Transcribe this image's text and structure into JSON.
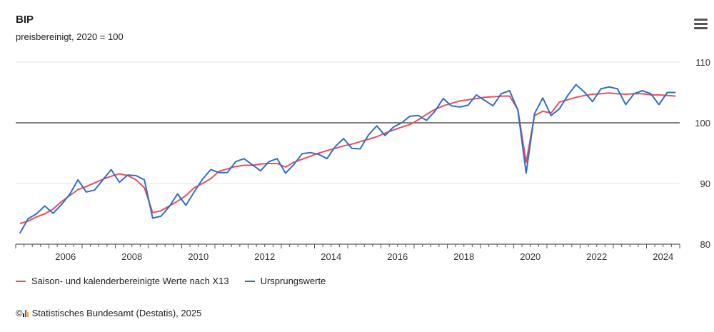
{
  "header": {
    "title": "BIP",
    "subtitle": "preisbereinigt, 2020 = 100",
    "menu_icon": "hamburger-menu-icon"
  },
  "legend": {
    "items": [
      {
        "label": "Saison- und kalenderbereinigte Werte nach X13",
        "color": "#e8505b"
      },
      {
        "label": "Ursprungswerte",
        "color": "#2f6ec4"
      }
    ]
  },
  "credit": {
    "text": "Statistisches Bundesamt (Destatis), 2025",
    "copyright": "©"
  },
  "chart_data": {
    "type": "line",
    "title": "BIP",
    "subtitle": "preisbereinigt, 2020 = 100",
    "xlabel": "",
    "ylabel": "",
    "ylim": [
      80,
      110
    ],
    "yticks": [
      80,
      90,
      100,
      110
    ],
    "xlim": [
      2005.0,
      2025.0
    ],
    "xticks": [
      2006,
      2008,
      2010,
      2012,
      2014,
      2016,
      2018,
      2020,
      2022,
      2024
    ],
    "reference_line": 100,
    "grid": true,
    "legend_position": "bottom-left",
    "x": [
      2005.125,
      2005.375,
      2005.625,
      2005.875,
      2006.125,
      2006.375,
      2006.625,
      2006.875,
      2007.125,
      2007.375,
      2007.625,
      2007.875,
      2008.125,
      2008.375,
      2008.625,
      2008.875,
      2009.125,
      2009.375,
      2009.625,
      2009.875,
      2010.125,
      2010.375,
      2010.625,
      2010.875,
      2011.125,
      2011.375,
      2011.625,
      2011.875,
      2012.125,
      2012.375,
      2012.625,
      2012.875,
      2013.125,
      2013.375,
      2013.625,
      2013.875,
      2014.125,
      2014.375,
      2014.625,
      2014.875,
      2015.125,
      2015.375,
      2015.625,
      2015.875,
      2016.125,
      2016.375,
      2016.625,
      2016.875,
      2017.125,
      2017.375,
      2017.625,
      2017.875,
      2018.125,
      2018.375,
      2018.625,
      2018.875,
      2019.125,
      2019.375,
      2019.625,
      2019.875,
      2020.125,
      2020.375,
      2020.625,
      2020.875,
      2021.125,
      2021.375,
      2021.625,
      2021.875,
      2022.125,
      2022.375,
      2022.625,
      2022.875,
      2023.125,
      2023.375,
      2023.625,
      2023.875,
      2024.125,
      2024.375,
      2024.625,
      2024.875
    ],
    "series": [
      {
        "name": "Saison- und kalenderbereinigte Werte nach X13",
        "color": "#e8505b",
        "values": [
          83.4,
          83.8,
          84.5,
          85.0,
          85.8,
          87.0,
          88.0,
          89.0,
          89.5,
          90.1,
          90.7,
          91.2,
          91.6,
          91.3,
          90.6,
          89.3,
          85.2,
          85.5,
          86.3,
          87.1,
          88.0,
          89.3,
          90.0,
          90.8,
          92.0,
          92.4,
          92.8,
          93.0,
          93.0,
          93.2,
          93.3,
          93.3,
          92.7,
          93.5,
          94.0,
          94.5,
          95.0,
          95.4,
          95.8,
          96.2,
          96.5,
          96.9,
          97.3,
          97.7,
          98.3,
          98.8,
          99.3,
          99.7,
          100.5,
          101.4,
          102.2,
          102.8,
          103.2,
          103.6,
          103.8,
          104.0,
          104.2,
          104.3,
          104.4,
          104.4,
          102.2,
          93.5,
          101.2,
          101.9,
          101.6,
          103.4,
          103.8,
          104.2,
          104.5,
          104.7,
          104.8,
          104.9,
          104.8,
          104.7,
          104.8,
          104.8,
          104.6,
          104.6,
          104.5,
          104.4
        ]
      },
      {
        "name": "Ursprungswerte",
        "color": "#2f6ec4",
        "values": [
          81.8,
          84.2,
          85.0,
          86.3,
          85.1,
          86.5,
          88.2,
          90.6,
          88.6,
          88.9,
          90.6,
          92.3,
          90.2,
          91.4,
          91.3,
          90.6,
          84.3,
          84.6,
          86.2,
          88.3,
          86.4,
          88.6,
          90.7,
          92.3,
          91.8,
          91.8,
          93.6,
          94.1,
          93.1,
          92.1,
          93.6,
          94.1,
          91.7,
          93.1,
          94.9,
          95.1,
          94.8,
          94.1,
          96.1,
          97.4,
          95.8,
          95.7,
          98.0,
          99.5,
          97.9,
          99.3,
          100.0,
          101.1,
          101.2,
          100.4,
          101.9,
          104.0,
          102.8,
          102.6,
          102.9,
          104.6,
          103.7,
          102.8,
          104.8,
          105.3,
          102.1,
          91.7,
          101.5,
          104.1,
          101.2,
          102.3,
          104.5,
          106.3,
          105.1,
          103.5,
          105.6,
          105.9,
          105.6,
          103.0,
          104.8,
          105.3,
          104.8,
          103.0,
          105.0,
          105.0
        ]
      }
    ]
  }
}
